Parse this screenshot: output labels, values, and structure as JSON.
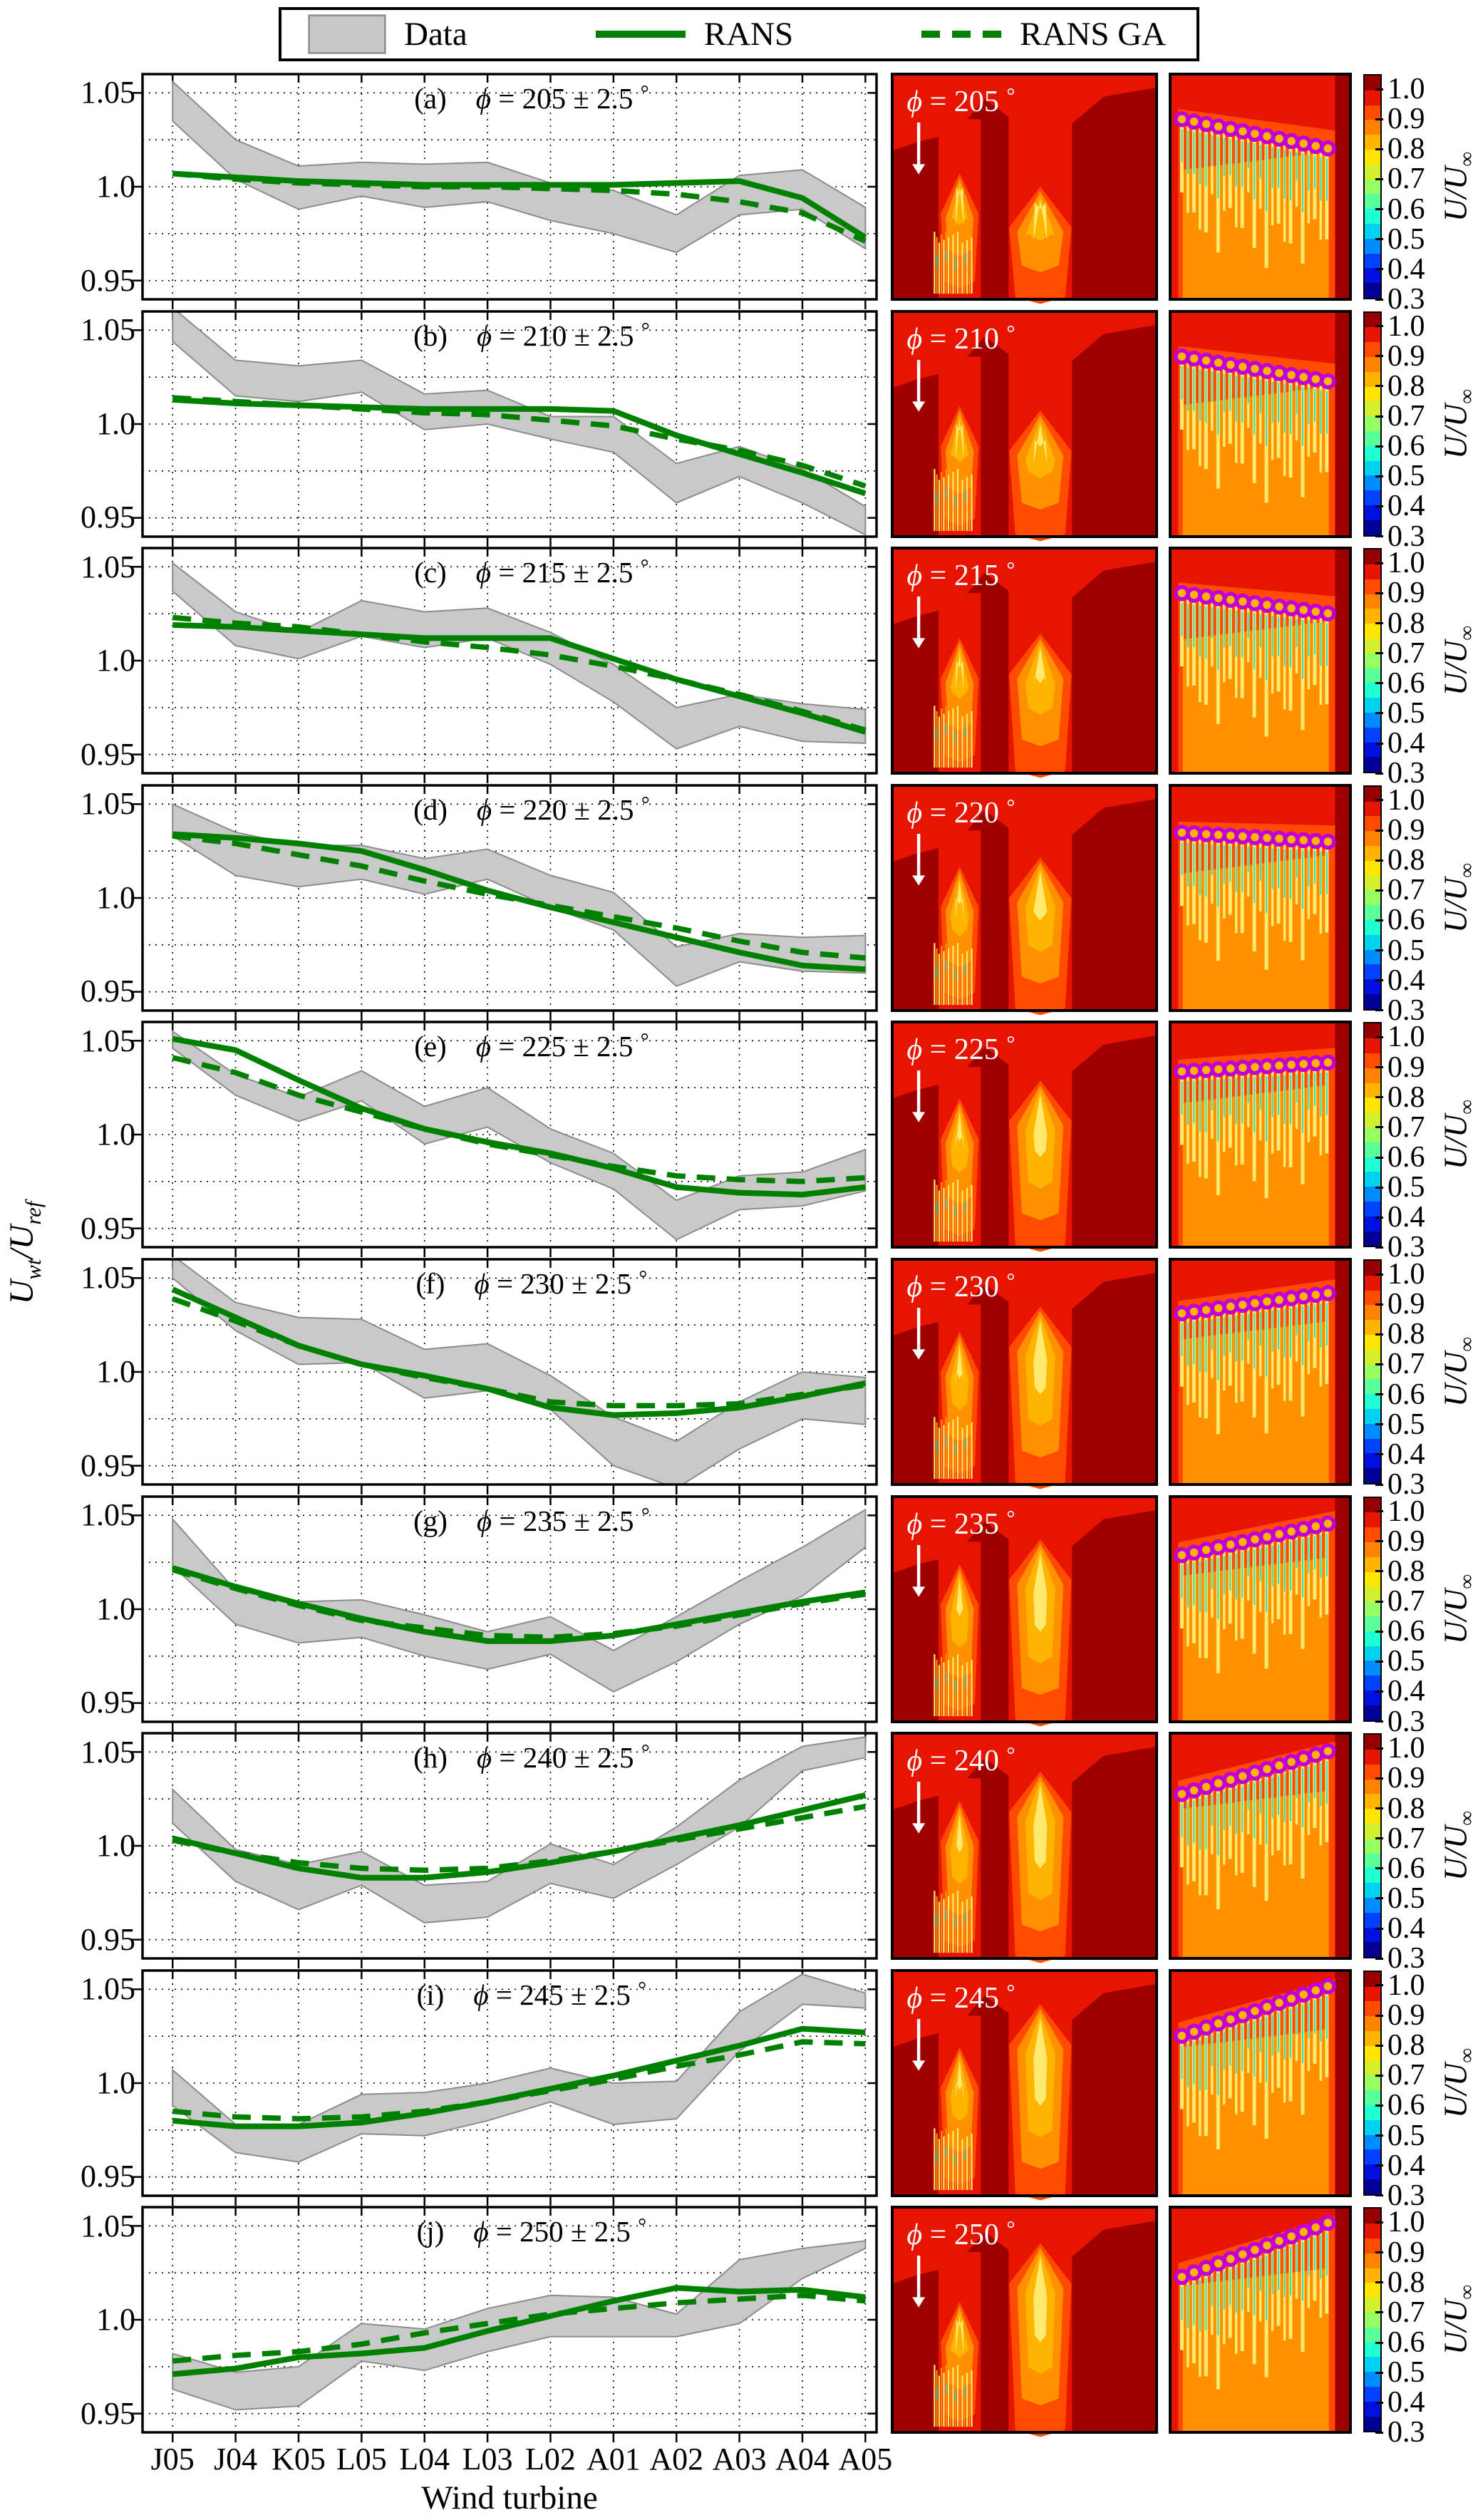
{
  "ui": {
    "legend": {
      "items": [
        {
          "label": "Data",
          "type": "band",
          "color": "#c8c8c8"
        },
        {
          "label": "RANS",
          "type": "line-solid",
          "color": "#008000"
        },
        {
          "label": "RANS GA",
          "type": "line-dashed",
          "color": "#008000"
        }
      ]
    },
    "phi_char": "ϕ",
    "equals": " = ",
    "plus_minus": " ± ",
    "tolerance": "2.5",
    "degree": "°",
    "ytick_labels": [
      "1.05",
      "1.0",
      "0.95"
    ],
    "ytick_values": [
      1.05,
      1.0,
      0.95
    ],
    "ylabel": {
      "u1": "U",
      "s1": "wt",
      "u2": "/U",
      "s2": "ref"
    },
    "xlabel": "Wind turbine",
    "colorbar": {
      "label_base": "U/U",
      "label_sub": "∞",
      "tick_labels": [
        "1.0",
        "0.9",
        "0.8",
        "0.7",
        "0.6",
        "0.5",
        "0.4",
        "0.3"
      ],
      "tick_values": [
        1.0,
        0.9,
        0.8,
        0.7,
        0.6,
        0.5,
        0.4,
        0.3
      ],
      "range": [
        0.3,
        1.05
      ],
      "colors_bottom_to_top": [
        "#000096",
        "#0010e1",
        "#0040ff",
        "#008cff",
        "#00d2f0",
        "#1effd2",
        "#5aff9b",
        "#96ff64",
        "#d2f02d",
        "#ffe600",
        "#ffb400",
        "#ff8200",
        "#ff4b00",
        "#e61400",
        "#960000"
      ]
    },
    "flow_colors": {
      "dark_red": "#9e0000",
      "red": "#e61400",
      "orange_red": "#ff4b00",
      "orange": "#ff9100",
      "light_orange": "#ffb400",
      "yellow": "#ffe96e",
      "cyan": "#2ce0c8",
      "marker_magenta": "#bf00d8",
      "label_white": "#ffffff"
    }
  },
  "chart_data": {
    "type": "line",
    "categories": [
      "J05",
      "J04",
      "K05",
      "L05",
      "L04",
      "L03",
      "L02",
      "A01",
      "A02",
      "A03",
      "A04",
      "A05"
    ],
    "xlabel": "Wind turbine",
    "ylabel": "U_wt / U_ref",
    "ylim": [
      0.94,
      1.06
    ],
    "yticks": [
      0.95,
      1.0,
      1.05
    ],
    "grid_y": [
      0.95,
      0.975,
      1.0,
      1.025,
      1.05
    ],
    "grid": "dotted",
    "legend_entries": [
      "Data (shaded band)",
      "RANS (solid green)",
      "RANS GA (dashed green)"
    ],
    "panels": [
      {
        "tag": "(a)",
        "phi_deg": "205",
        "data_upper": [
          1.056,
          1.025,
          1.011,
          1.013,
          1.012,
          1.013,
          1.002,
          0.998,
          0.985,
          1.006,
          1.009,
          0.989
        ],
        "data_lower": [
          1.035,
          1.004,
          0.988,
          0.995,
          0.989,
          0.992,
          0.982,
          0.975,
          0.965,
          0.985,
          0.988,
          0.967
        ],
        "rans": [
          1.007,
          1.005,
          1.003,
          1.002,
          1.001,
          1.001,
          1.001,
          1.001,
          1.002,
          1.003,
          0.994,
          0.973
        ],
        "rans_ga": [
          1.007,
          1.004,
          1.002,
          1.001,
          1.0,
          1.0,
          0.999,
          0.998,
          0.996,
          0.992,
          0.986,
          0.971
        ],
        "flow": {
          "marker_y_left": 0.2,
          "marker_y_right": 0.33,
          "plume1_top": 0.44,
          "plume2_top": 0.5
        }
      },
      {
        "tag": "(b)",
        "phi_deg": "210",
        "data_upper": [
          1.062,
          1.034,
          1.031,
          1.034,
          1.016,
          1.018,
          1.004,
          1.004,
          0.979,
          0.988,
          0.976,
          0.956
        ],
        "data_lower": [
          1.044,
          1.015,
          1.012,
          1.017,
          0.997,
          1.0,
          0.992,
          0.985,
          0.958,
          0.972,
          0.958,
          0.941
        ],
        "rans": [
          1.013,
          1.011,
          1.01,
          1.009,
          1.008,
          1.008,
          1.008,
          1.007,
          0.994,
          0.984,
          0.974,
          0.963
        ],
        "rans_ga": [
          1.014,
          1.012,
          1.01,
          1.008,
          1.006,
          1.005,
          1.002,
          0.999,
          0.992,
          0.986,
          0.978,
          0.967
        ],
        "flow": {
          "marker_y_left": 0.2,
          "marker_y_right": 0.31,
          "plume1_top": 0.42,
          "plume2_top": 0.44
        }
      },
      {
        "tag": "(c)",
        "phi_deg": "215",
        "data_upper": [
          1.052,
          1.026,
          1.015,
          1.032,
          1.026,
          1.028,
          1.015,
          0.998,
          0.975,
          0.982,
          0.977,
          0.974
        ],
        "data_lower": [
          1.037,
          1.008,
          1.001,
          1.013,
          1.007,
          1.012,
          0.998,
          0.978,
          0.953,
          0.965,
          0.957,
          0.956
        ],
        "rans": [
          1.019,
          1.018,
          1.016,
          1.014,
          1.012,
          1.012,
          1.012,
          1.001,
          0.99,
          0.981,
          0.972,
          0.962
        ],
        "rans_ga": [
          1.023,
          1.02,
          1.018,
          1.014,
          1.01,
          1.007,
          1.003,
          0.997,
          0.99,
          0.982,
          0.973,
          0.963
        ],
        "flow": {
          "marker_y_left": 0.2,
          "marker_y_right": 0.29,
          "plume1_top": 0.4,
          "plume2_top": 0.38
        }
      },
      {
        "tag": "(d)",
        "phi_deg": "220",
        "data_upper": [
          1.05,
          1.035,
          1.028,
          1.028,
          1.021,
          1.026,
          1.012,
          1.003,
          0.974,
          0.981,
          0.979,
          0.98
        ],
        "data_lower": [
          1.033,
          1.012,
          1.006,
          1.01,
          1.002,
          1.01,
          0.995,
          0.983,
          0.953,
          0.966,
          0.961,
          0.96
        ],
        "rans": [
          1.034,
          1.032,
          1.029,
          1.025,
          1.015,
          1.004,
          0.995,
          0.987,
          0.979,
          0.971,
          0.964,
          0.962
        ],
        "rans_ga": [
          1.033,
          1.029,
          1.023,
          1.017,
          1.009,
          1.002,
          0.996,
          0.99,
          0.984,
          0.977,
          0.971,
          0.968
        ],
        "flow": {
          "marker_y_left": 0.21,
          "marker_y_right": 0.25,
          "plume1_top": 0.36,
          "plume2_top": 0.32
        }
      },
      {
        "tag": "(e)",
        "phi_deg": "225",
        "data_upper": [
          1.055,
          1.032,
          1.02,
          1.034,
          1.015,
          1.025,
          1.003,
          0.99,
          0.965,
          0.978,
          0.98,
          0.992
        ],
        "data_lower": [
          1.046,
          1.021,
          1.007,
          1.018,
          0.995,
          1.004,
          0.985,
          0.971,
          0.944,
          0.96,
          0.962,
          0.97
        ],
        "rans": [
          1.051,
          1.045,
          1.029,
          1.014,
          1.003,
          0.996,
          0.99,
          0.982,
          0.972,
          0.969,
          0.968,
          0.972
        ],
        "rans_ga": [
          1.041,
          1.033,
          1.021,
          1.012,
          1.003,
          0.995,
          0.989,
          0.983,
          0.978,
          0.976,
          0.975,
          0.977
        ],
        "flow": {
          "marker_y_left": 0.22,
          "marker_y_right": 0.18,
          "plume1_top": 0.34,
          "plume2_top": 0.26
        }
      },
      {
        "tag": "(f)",
        "phi_deg": "230",
        "data_upper": [
          1.062,
          1.037,
          1.029,
          1.028,
          1.012,
          1.015,
          0.998,
          0.976,
          0.963,
          0.984,
          1.0,
          0.997
        ],
        "data_lower": [
          1.05,
          1.022,
          1.004,
          1.005,
          0.986,
          0.99,
          0.98,
          0.95,
          0.938,
          0.959,
          0.975,
          0.972
        ],
        "rans": [
          1.044,
          1.029,
          1.014,
          1.004,
          0.998,
          0.991,
          0.981,
          0.977,
          0.978,
          0.981,
          0.987,
          0.994
        ],
        "rans_ga": [
          1.039,
          1.027,
          1.014,
          1.004,
          0.997,
          0.991,
          0.984,
          0.982,
          0.982,
          0.983,
          0.988,
          0.993
        ],
        "flow": {
          "marker_y_left": 0.24,
          "marker_y_right": 0.15,
          "plume1_top": 0.32,
          "plume2_top": 0.21
        }
      },
      {
        "tag": "(g)",
        "phi_deg": "235",
        "data_upper": [
          1.048,
          1.01,
          1.004,
          1.005,
          0.997,
          0.988,
          0.996,
          0.978,
          0.996,
          1.015,
          1.033,
          1.053
        ],
        "data_lower": [
          1.023,
          0.992,
          0.982,
          0.985,
          0.975,
          0.968,
          0.976,
          0.956,
          0.972,
          0.992,
          1.007,
          1.033
        ],
        "rans": [
          1.022,
          1.012,
          1.003,
          0.995,
          0.988,
          0.983,
          0.983,
          0.986,
          0.992,
          0.998,
          1.004,
          1.009
        ],
        "rans_ga": [
          1.021,
          1.011,
          1.002,
          0.994,
          0.99,
          0.986,
          0.985,
          0.987,
          0.991,
          0.997,
          1.003,
          1.008
        ],
        "flow": {
          "marker_y_left": 0.26,
          "marker_y_right": 0.12,
          "plume1_top": 0.3,
          "plume2_top": 0.19
        }
      },
      {
        "tag": "(h)",
        "phi_deg": "240",
        "data_upper": [
          1.03,
          0.998,
          0.99,
          0.997,
          0.979,
          0.981,
          1.001,
          0.99,
          1.01,
          1.035,
          1.053,
          1.058
        ],
        "data_lower": [
          1.012,
          0.981,
          0.966,
          0.979,
          0.959,
          0.962,
          0.98,
          0.972,
          0.99,
          1.01,
          1.04,
          1.047
        ],
        "rans": [
          1.004,
          0.996,
          0.988,
          0.983,
          0.983,
          0.986,
          0.991,
          0.997,
          1.004,
          1.011,
          1.019,
          1.027
        ],
        "rans_ga": [
          1.003,
          0.996,
          0.991,
          0.988,
          0.987,
          0.988,
          0.992,
          0.997,
          1.003,
          1.009,
          1.015,
          1.021
        ],
        "flow": {
          "marker_y_left": 0.27,
          "marker_y_right": 0.08,
          "plume1_top": 0.3,
          "plume2_top": 0.17
        }
      },
      {
        "tag": "(i)",
        "phi_deg": "245",
        "data_upper": [
          1.007,
          0.978,
          0.978,
          0.994,
          0.995,
          1.0,
          1.008,
          1.0,
          1.001,
          1.038,
          1.058,
          1.048
        ],
        "data_lower": [
          0.988,
          0.963,
          0.958,
          0.973,
          0.972,
          0.98,
          0.99,
          0.978,
          0.981,
          1.017,
          1.042,
          1.04
        ],
        "rans": [
          0.98,
          0.977,
          0.977,
          0.979,
          0.984,
          0.99,
          0.997,
          1.004,
          1.012,
          1.02,
          1.029,
          1.027
        ],
        "rans_ga": [
          0.985,
          0.982,
          0.981,
          0.982,
          0.985,
          0.99,
          0.996,
          1.002,
          1.009,
          1.015,
          1.022,
          1.021
        ],
        "flow": {
          "marker_y_left": 0.29,
          "marker_y_right": 0.07,
          "plume1_top": 0.34,
          "plume2_top": 0.15
        }
      },
      {
        "tag": "(j)",
        "phi_deg": "250",
        "data_upper": [
          0.982,
          0.972,
          0.975,
          0.998,
          0.995,
          1.006,
          1.013,
          1.012,
          1.003,
          1.032,
          1.038,
          1.042
        ],
        "data_lower": [
          0.963,
          0.952,
          0.954,
          0.978,
          0.973,
          0.983,
          0.991,
          0.991,
          0.991,
          0.998,
          1.022,
          1.038
        ],
        "rans": [
          0.971,
          0.974,
          0.98,
          0.982,
          0.985,
          0.994,
          1.002,
          1.01,
          1.017,
          1.015,
          1.016,
          1.012
        ],
        "rans_ga": [
          0.978,
          0.981,
          0.983,
          0.987,
          0.993,
          0.998,
          1.003,
          1.006,
          1.009,
          1.011,
          1.013,
          1.01
        ],
        "flow": {
          "marker_y_left": 0.31,
          "marker_y_right": 0.07,
          "plume1_top": 0.42,
          "plume2_top": 0.16
        }
      }
    ],
    "flow_maps": {
      "colorbar_label": "U/U∞",
      "colorbar_range": [
        0.3,
        1.05
      ],
      "colorbar_ticks": [
        0.3,
        0.4,
        0.5,
        0.6,
        0.7,
        0.8,
        0.9,
        1.0
      ],
      "n_turbine_markers": 13
    }
  }
}
